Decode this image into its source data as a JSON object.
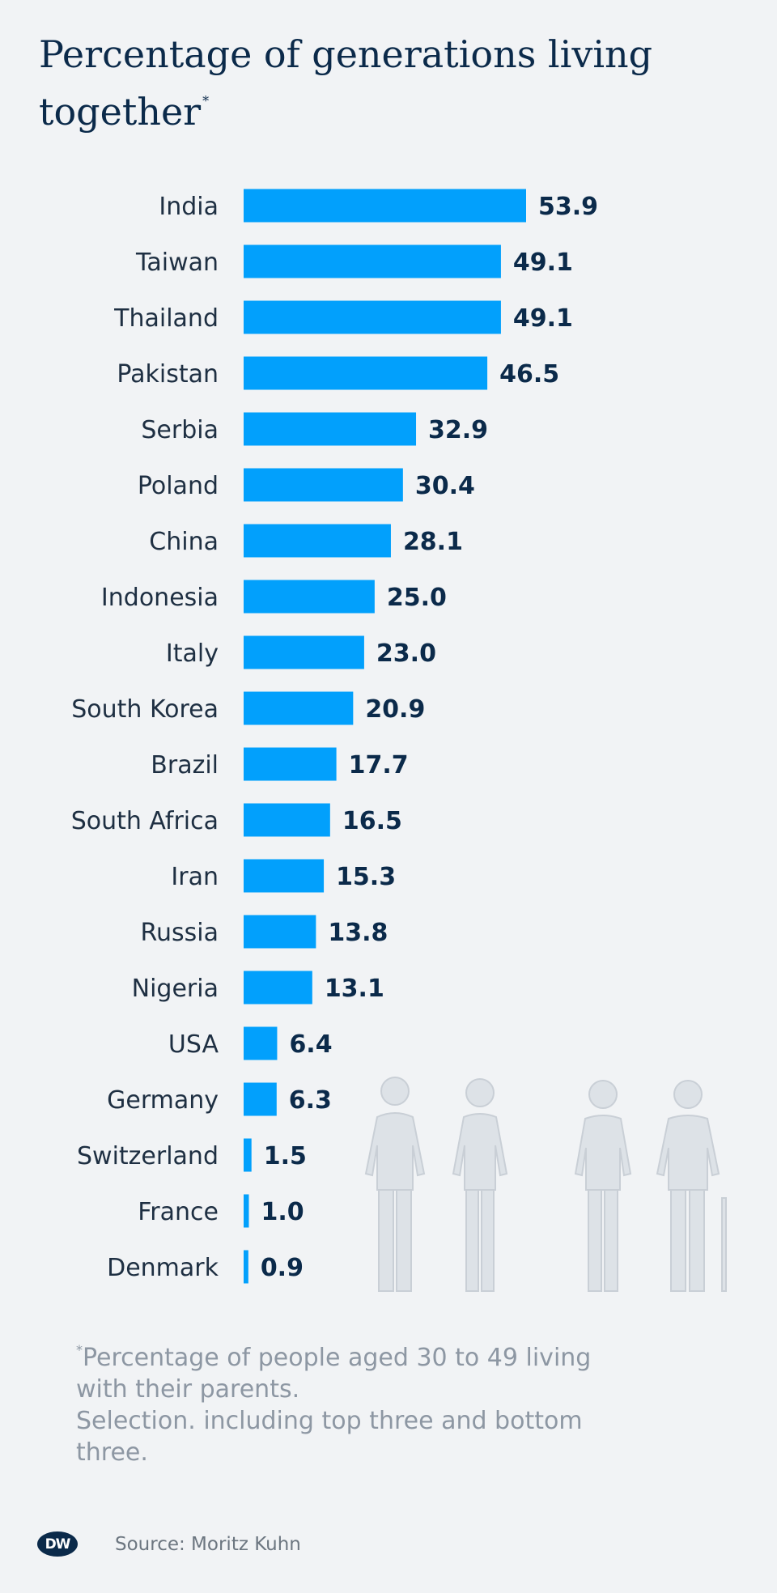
{
  "title": {
    "text": "Percentage of generations living together",
    "marker": "*"
  },
  "chart_data": {
    "type": "bar",
    "orientation": "horizontal",
    "title": "Percentage of generations living together",
    "categories": [
      "India",
      "Taiwan",
      "Thailand",
      "Pakistan",
      "Serbia",
      "Poland",
      "China",
      "Indonesia",
      "Italy",
      "South Korea",
      "Brazil",
      "South Africa",
      "Iran",
      "Russia",
      "Nigeria",
      "USA",
      "Germany",
      "Switzerland",
      "France",
      "Denmark"
    ],
    "values": [
      53.9,
      49.1,
      49.1,
      46.5,
      32.9,
      30.4,
      28.1,
      25.0,
      23.0,
      20.9,
      17.7,
      16.5,
      15.3,
      13.8,
      13.1,
      6.4,
      6.3,
      1.5,
      1.0,
      0.9
    ],
    "value_labels": [
      "53.9",
      "49.1",
      "49.1",
      "46.5",
      "32.9",
      "30.4",
      "28.1",
      "25.0",
      "23.0",
      "20.9",
      "17.7",
      "16.5",
      "15.3",
      "13.8",
      "13.1",
      "6.4",
      "6.3",
      "1.5",
      "1.0",
      "0.9"
    ],
    "xlim": [
      0,
      53.9
    ],
    "xlabel": "",
    "ylabel": "",
    "grid": false,
    "bar_color": "#02a0fc"
  },
  "illustration": {
    "icon": "people-illustration-icon"
  },
  "footnote": {
    "marker": "*",
    "text": "Percentage of people aged 30 to 49 living with their parents.",
    "selection": "Selection. including top three and bottom three."
  },
  "footer": {
    "logo": "DW",
    "source": "Source: Moritz Kuhn"
  },
  "colors": {
    "background": "#f1f3f5",
    "bar": "#02a0fc",
    "title": "#0b2a4a",
    "footnote": "#8d97a3"
  }
}
